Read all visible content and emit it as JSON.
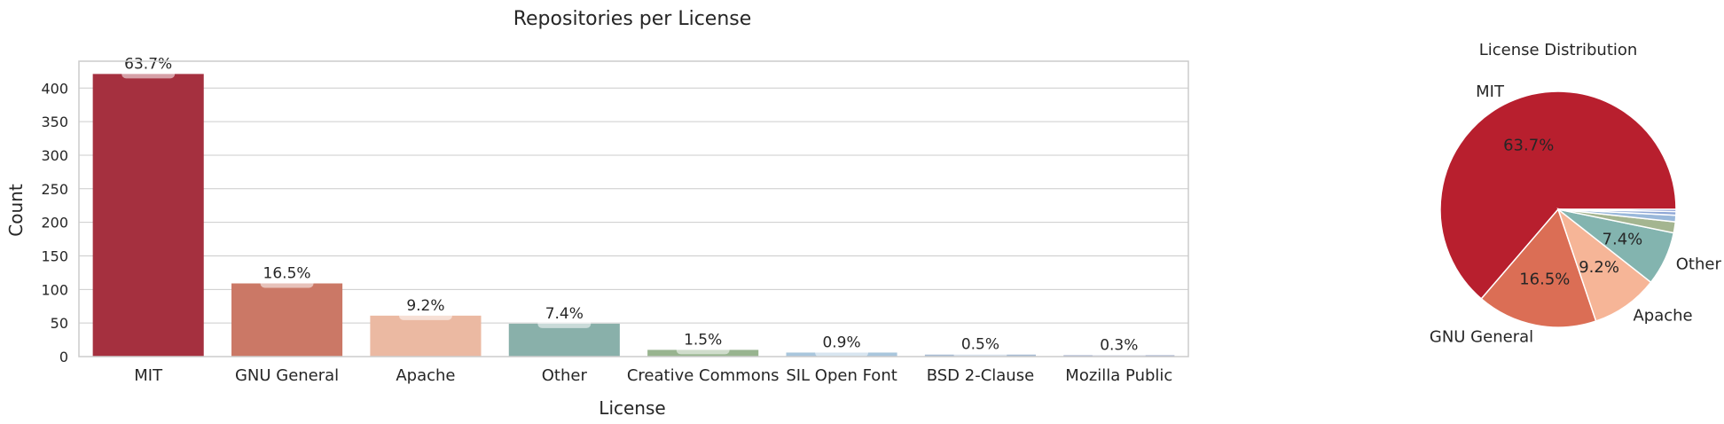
{
  "chart_data": [
    {
      "type": "bar",
      "title": "Repositories per License",
      "xlabel": "License",
      "ylabel": "Count",
      "ylim": [
        0,
        440
      ],
      "yticks": [
        "0",
        "50",
        "100",
        "150",
        "200",
        "250",
        "300",
        "350",
        "400"
      ],
      "ytick_values": [
        0,
        50,
        100,
        150,
        200,
        250,
        300,
        350,
        400
      ],
      "grid": true,
      "categories": [
        "MIT",
        "GNU General",
        "Apache",
        "Other",
        "Creative Commons",
        "SIL Open Font",
        "BSD 2-Clause",
        "Mozilla Public"
      ],
      "values": [
        421,
        109,
        61,
        49,
        10,
        6,
        3,
        2
      ],
      "labels": [
        "63.7%",
        "16.5%",
        "9.2%",
        "7.4%",
        "1.5%",
        "0.9%",
        "0.5%",
        "0.3%"
      ],
      "colors": [
        "#a5303f",
        "#cb7866",
        "#ebb9a2",
        "#89b0aa",
        "#98b48f",
        "#a9c6dd",
        "#a8bcd4",
        "#9aa6c8"
      ]
    },
    {
      "type": "pie",
      "title": "License Distribution",
      "categories": [
        "MIT",
        "GNU General",
        "Apache",
        "Other",
        "Creative Commons",
        "SIL Open Font",
        "BSD 2-Clause",
        "Mozilla Public"
      ],
      "values": [
        63.7,
        16.5,
        9.2,
        7.4,
        1.5,
        0.9,
        0.5,
        0.3
      ],
      "slice_labels": [
        "MIT",
        "GNU General",
        "Apache",
        "Other",
        "",
        "",
        "",
        ""
      ],
      "pct_labels": [
        "63.7%",
        "16.5%",
        "9.2%",
        "7.4%",
        "",
        "",
        "",
        ""
      ],
      "colors": [
        "#b81f2e",
        "#db6e55",
        "#f6b597",
        "#83b4af",
        "#a4b590",
        "#9ab8da",
        "#8fa7d6",
        "#6f86c8"
      ]
    }
  ]
}
